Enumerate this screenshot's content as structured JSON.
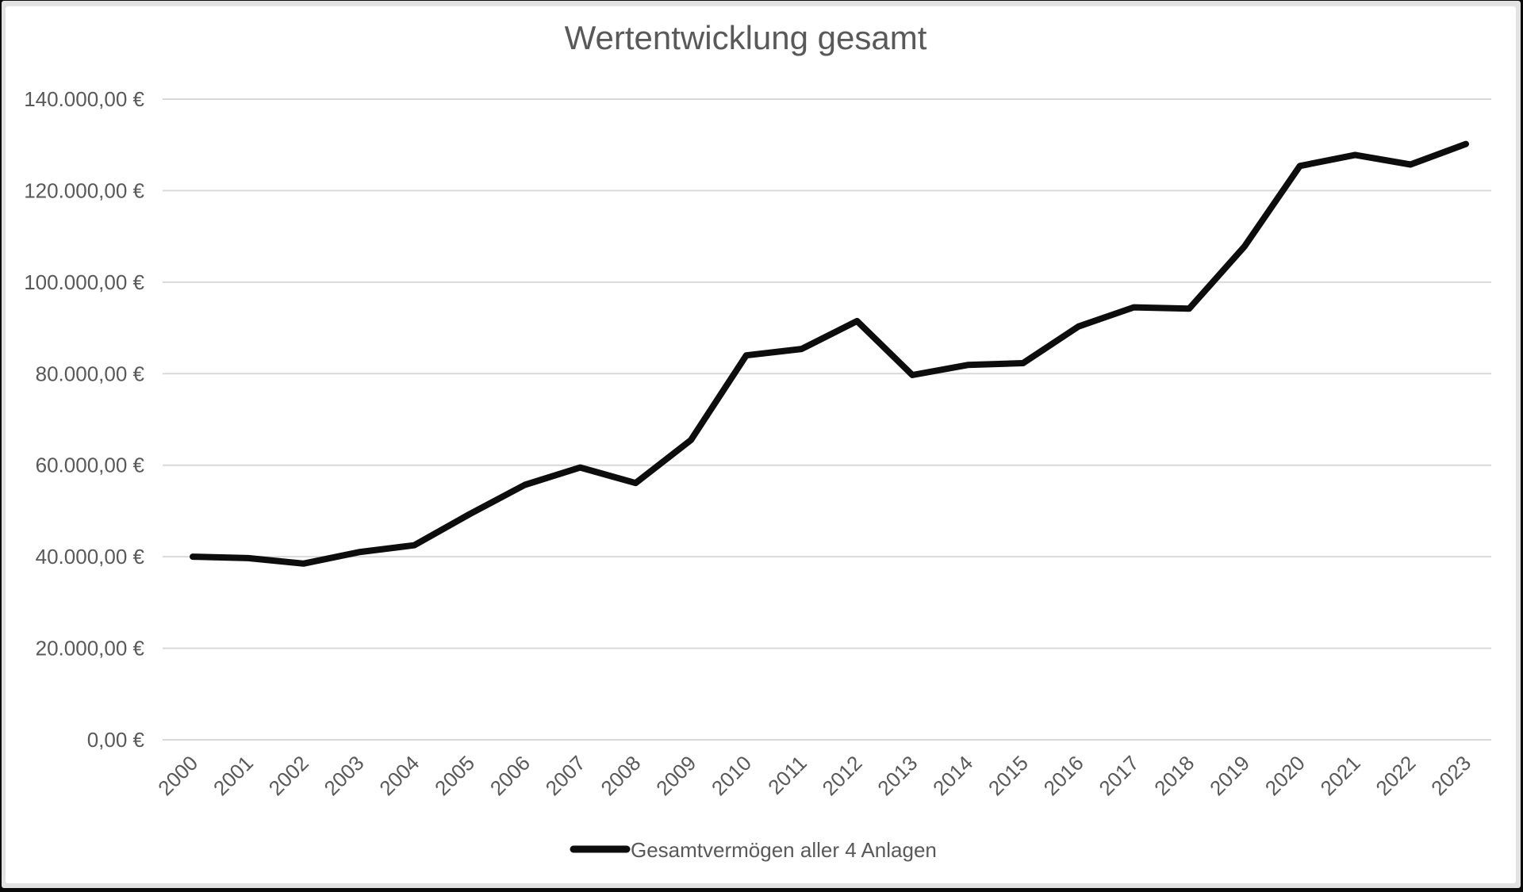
{
  "chart": {
    "title": "Wertentwicklung gesamt",
    "legend": {
      "series_label": "Gesamtvermögen aller 4 Anlagen"
    }
  },
  "chart_data": {
    "type": "line",
    "title": "Wertentwicklung gesamt",
    "xlabel": "",
    "ylabel": "",
    "categories": [
      "2000",
      "2001",
      "2002",
      "2003",
      "2004",
      "2005",
      "2006",
      "2007",
      "2008",
      "2009",
      "2010",
      "2011",
      "2012",
      "2013",
      "2014",
      "2015",
      "2016",
      "2017",
      "2018",
      "2019",
      "2020",
      "2021",
      "2022",
      "2023"
    ],
    "series": [
      {
        "name": "Gesamtvermögen aller 4 Anlagen",
        "values": [
          40000,
          39700,
          38500,
          41000,
          42500,
          49300,
          55700,
          59500,
          56100,
          65500,
          84000,
          85400,
          91500,
          79700,
          81900,
          82300,
          90300,
          94500,
          94200,
          107800,
          125400,
          127800,
          125700,
          130200
        ]
      }
    ],
    "ylim": [
      0,
      140000
    ],
    "ytick_step": 20000,
    "y_ticks": [
      {
        "value": 140000,
        "label": "140.000,00 €"
      },
      {
        "value": 120000,
        "label": "120.000,00 €"
      },
      {
        "value": 100000,
        "label": "100.000,00 €"
      },
      {
        "value": 80000,
        "label": "80.000,00 €"
      },
      {
        "value": 60000,
        "label": "60.000,00 €"
      },
      {
        "value": 40000,
        "label": "40.000,00 €"
      },
      {
        "value": 20000,
        "label": "20.000,00 €"
      },
      {
        "value": 0,
        "label": "0,00 €"
      }
    ],
    "grid": "horizontal",
    "legend_position": "bottom",
    "colors": {
      "line": "#0d0d0d",
      "grid": "#d9d9d9",
      "text": "#595959"
    }
  }
}
